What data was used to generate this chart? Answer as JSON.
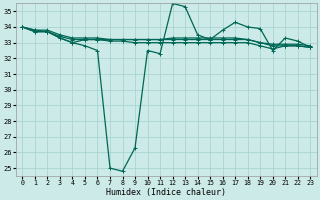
{
  "xlabel": "Humidex (Indice chaleur)",
  "xlim": [
    -0.5,
    23.5
  ],
  "ylim": [
    24.5,
    35.5
  ],
  "yticks": [
    25,
    26,
    27,
    28,
    29,
    30,
    31,
    32,
    33,
    34,
    35
  ],
  "xticks": [
    0,
    1,
    2,
    3,
    4,
    5,
    6,
    7,
    8,
    9,
    10,
    11,
    12,
    13,
    14,
    15,
    16,
    17,
    18,
    19,
    20,
    21,
    22,
    23
  ],
  "bg_color": "#cceae7",
  "grid_color": "#aad4d0",
  "line_color": "#006655",
  "line_width": 0.9,
  "marker": "+",
  "marker_size": 3.5,
  "series": [
    [
      34.0,
      33.7,
      33.7,
      33.3,
      33.0,
      32.8,
      32.5,
      25.0,
      24.8,
      26.3,
      32.5,
      32.3,
      35.5,
      35.3,
      33.5,
      33.2,
      33.8,
      34.3,
      34.0,
      33.9,
      32.5,
      33.3,
      33.1,
      32.7
    ],
    [
      34.0,
      33.7,
      33.7,
      33.3,
      33.0,
      33.2,
      33.2,
      33.1,
      33.1,
      33.0,
      33.0,
      33.0,
      33.0,
      33.0,
      33.0,
      33.0,
      33.0,
      33.0,
      33.0,
      32.8,
      32.6,
      32.8,
      32.8,
      32.7
    ],
    [
      34.0,
      33.8,
      33.7,
      33.4,
      33.2,
      33.2,
      33.2,
      33.2,
      33.2,
      33.2,
      33.2,
      33.2,
      33.2,
      33.2,
      33.2,
      33.2,
      33.2,
      33.2,
      33.2,
      33.0,
      32.8,
      32.8,
      32.8,
      32.7
    ],
    [
      34.0,
      33.8,
      33.8,
      33.5,
      33.3,
      33.3,
      33.3,
      33.2,
      33.2,
      33.2,
      33.2,
      33.2,
      33.3,
      33.3,
      33.3,
      33.3,
      33.3,
      33.3,
      33.2,
      33.0,
      32.9,
      32.9,
      32.9,
      32.8
    ]
  ]
}
